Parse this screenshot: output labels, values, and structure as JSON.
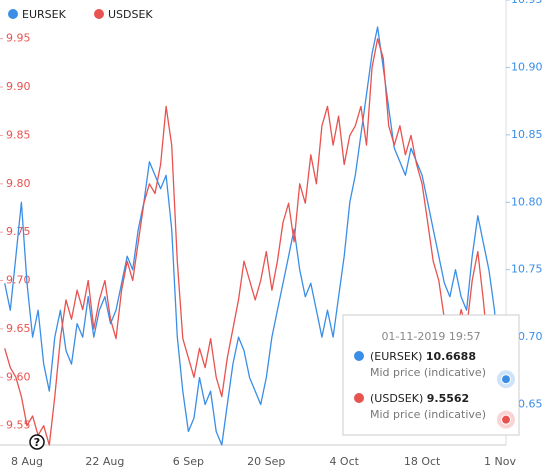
{
  "chart_data": {
    "type": "line",
    "categories": [
      "4 Aug",
      "5 Aug",
      "6 Aug",
      "7 Aug",
      "8 Aug",
      "9 Aug",
      "10 Aug",
      "11 Aug",
      "12 Aug",
      "13 Aug",
      "14 Aug",
      "15 Aug",
      "16 Aug",
      "17 Aug",
      "18 Aug",
      "19 Aug",
      "20 Aug",
      "21 Aug",
      "22 Aug",
      "23 Aug",
      "24 Aug",
      "25 Aug",
      "26 Aug",
      "27 Aug",
      "28 Aug",
      "29 Aug",
      "30 Aug",
      "31 Aug",
      "1 Sep",
      "2 Sep",
      "3 Sep",
      "4 Sep",
      "5 Sep",
      "6 Sep",
      "7 Sep",
      "8 Sep",
      "9 Sep",
      "10 Sep",
      "11 Sep",
      "12 Sep",
      "13 Sep",
      "14 Sep",
      "15 Sep",
      "16 Sep",
      "17 Sep",
      "18 Sep",
      "19 Sep",
      "20 Sep",
      "21 Sep",
      "22 Sep",
      "23 Sep",
      "24 Sep",
      "25 Sep",
      "26 Sep",
      "27 Sep",
      "28 Sep",
      "29 Sep",
      "30 Sep",
      "1 Oct",
      "2 Oct",
      "3 Oct",
      "4 Oct",
      "5 Oct",
      "6 Oct",
      "7 Oct",
      "8 Oct",
      "9 Oct",
      "10 Oct",
      "11 Oct",
      "12 Oct",
      "13 Oct",
      "14 Oct",
      "15 Oct",
      "16 Oct",
      "17 Oct",
      "18 Oct",
      "19 Oct",
      "20 Oct",
      "21 Oct",
      "22 Oct",
      "23 Oct",
      "24 Oct",
      "25 Oct",
      "26 Oct",
      "27 Oct",
      "28 Oct",
      "29 Oct",
      "30 Oct",
      "31 Oct",
      "1 Nov"
    ],
    "xticks": [
      "8 Aug",
      "22 Aug",
      "6 Sep",
      "20 Sep",
      "4 Oct",
      "18 Oct",
      "1 Nov"
    ],
    "series": [
      {
        "name": "EURSEK",
        "color": "#3a8ee6",
        "axis": "y2",
        "values": [
          10.74,
          10.72,
          10.76,
          10.8,
          10.74,
          10.7,
          10.72,
          10.68,
          10.66,
          10.7,
          10.72,
          10.69,
          10.68,
          10.71,
          10.7,
          10.73,
          10.7,
          10.72,
          10.73,
          10.71,
          10.72,
          10.74,
          10.76,
          10.75,
          10.78,
          10.8,
          10.83,
          10.82,
          10.81,
          10.82,
          10.78,
          10.7,
          10.66,
          10.63,
          10.64,
          10.67,
          10.65,
          10.66,
          10.63,
          10.62,
          10.65,
          10.68,
          10.7,
          10.69,
          10.67,
          10.66,
          10.65,
          10.67,
          10.7,
          10.72,
          10.74,
          10.76,
          10.78,
          10.75,
          10.73,
          10.74,
          10.72,
          10.7,
          10.72,
          10.7,
          10.73,
          10.76,
          10.8,
          10.82,
          10.85,
          10.88,
          10.91,
          10.93,
          10.9,
          10.87,
          10.84,
          10.83,
          10.82,
          10.84,
          10.83,
          10.82,
          10.8,
          10.78,
          10.76,
          10.74,
          10.73,
          10.75,
          10.73,
          10.72,
          10.76,
          10.79,
          10.77,
          10.75,
          10.72,
          10.6688
        ]
      },
      {
        "name": "USDSEK",
        "color": "#e8524f",
        "values": [
          9.63,
          9.61,
          9.6,
          9.58,
          9.55,
          9.56,
          9.54,
          9.55,
          9.53,
          9.58,
          9.64,
          9.68,
          9.66,
          9.69,
          9.67,
          9.7,
          9.65,
          9.68,
          9.7,
          9.66,
          9.64,
          9.69,
          9.72,
          9.7,
          9.74,
          9.78,
          9.8,
          9.79,
          9.82,
          9.88,
          9.84,
          9.72,
          9.64,
          9.62,
          9.6,
          9.63,
          9.61,
          9.64,
          9.6,
          9.58,
          9.62,
          9.65,
          9.68,
          9.72,
          9.7,
          9.68,
          9.7,
          9.73,
          9.69,
          9.72,
          9.76,
          9.78,
          9.74,
          9.8,
          9.78,
          9.83,
          9.8,
          9.86,
          9.88,
          9.84,
          9.87,
          9.82,
          9.85,
          9.86,
          9.88,
          9.84,
          9.92,
          9.95,
          9.93,
          9.86,
          9.84,
          9.86,
          9.83,
          9.85,
          9.82,
          9.8,
          9.76,
          9.72,
          9.7,
          9.66,
          9.63,
          9.64,
          9.67,
          9.65,
          9.7,
          9.73,
          9.68,
          9.62,
          9.58,
          9.5562
        ]
      }
    ],
    "ylim": [
      9.53,
      9.99
    ],
    "yticks": [
      9.55,
      {
        "value": 9.6,
        "label": "9.60"
      },
      9.65,
      {
        "value": 9.7,
        "label": "9.70"
      },
      9.75,
      {
        "value": 9.8,
        "label": "9.80"
      },
      9.85,
      {
        "value": 9.9,
        "label": "9.90"
      },
      9.95
    ],
    "y2lim": [
      10.62,
      10.95
    ],
    "y2ticks": [
      10.65,
      {
        "value": 10.7,
        "label": "10.70"
      },
      10.75,
      {
        "value": 10.8,
        "label": "10.80"
      },
      10.85,
      {
        "value": 10.9,
        "label": "10.90"
      },
      10.95
    ],
    "legend": "top-left",
    "tooltip": {
      "time": "01-11-2019 19:57",
      "items": [
        {
          "label": "(EURSEK)",
          "sublabel": "Mid price (indicative)"
        },
        {
          "label": "(USDSEK)",
          "sublabel": "Mid price (indicative)"
        }
      ]
    },
    "help_icon": "?"
  }
}
